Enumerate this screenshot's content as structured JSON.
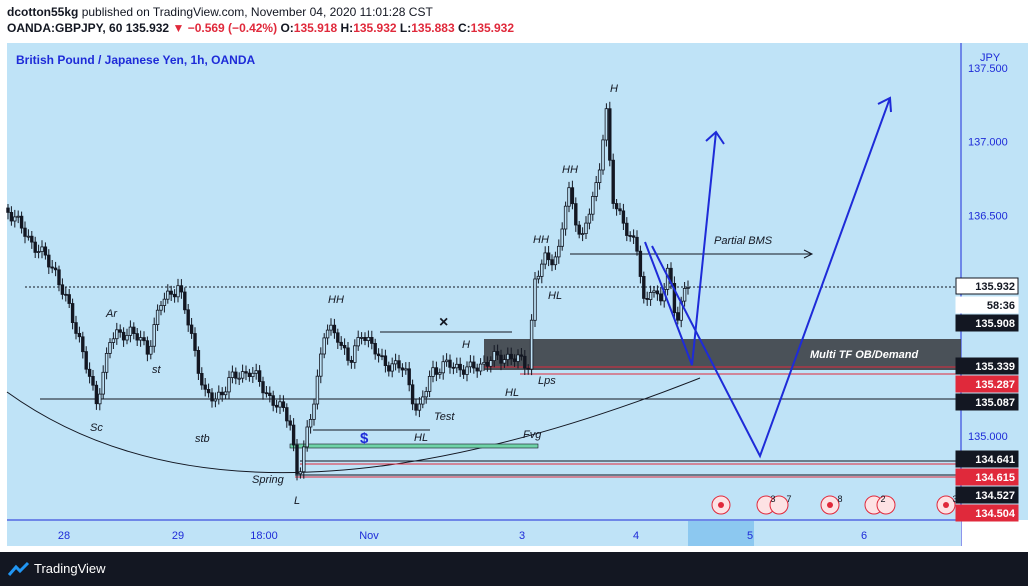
{
  "header": {
    "publisher": "dcotton55kg",
    "published_text": "published on TradingView.com, November 04, 2020 11:01:28 CST",
    "symbol": "OANDA:GBPJPY, 60",
    "last": "135.932",
    "change_arrow": "▼",
    "change": "−0.569 (−0.42%)",
    "o_label": "O:",
    "o_value": "135.918",
    "h_label": "H:",
    "h_value": "135.932",
    "l_label": "L:",
    "l_value": "135.883",
    "c_label": "C:",
    "c_value": "135.932"
  },
  "chart_data": {
    "type": "candlestick",
    "title": "British Pound / Japanese Yen, 1h, OANDA",
    "currency": "JPY",
    "ylim": [
      134.43,
      137.67
    ],
    "x_ticks": [
      "28",
      "29",
      "18:00",
      "Nov",
      "3",
      "4",
      "5",
      "6"
    ],
    "y_ticks": [
      "137.500",
      "137.000",
      "136.500",
      "136.000",
      "135.500",
      "135.000"
    ],
    "price_labels": [
      {
        "value": "135.932",
        "kind": "last"
      },
      {
        "value": "58:36",
        "kind": "countdown"
      },
      {
        "value": "135.908",
        "kind": "dark"
      },
      {
        "value": "135.339",
        "kind": "dark"
      },
      {
        "value": "135.287",
        "kind": "red"
      },
      {
        "value": "135.087",
        "kind": "dark"
      },
      {
        "value": "134.641",
        "kind": "dark"
      },
      {
        "value": "134.615",
        "kind": "red"
      },
      {
        "value": "134.527",
        "kind": "dark"
      },
      {
        "value": "134.504",
        "kind": "red"
      }
    ],
    "annotations": [
      "H",
      "HH",
      "HH",
      "HH",
      "HH",
      "HL",
      "HL",
      "HL",
      "Ar",
      "st",
      "Sc",
      "stb",
      "Spring",
      "L",
      "Test",
      "H",
      "Lps",
      "Fvg",
      "$",
      "×",
      "Partial BMS",
      "Multi TF OB/Demand"
    ],
    "events": [
      "",
      "3",
      "7",
      "8",
      "2",
      "3"
    ],
    "colors": {
      "background": "#bfe3f7",
      "up": "#131722",
      "down": "#131722",
      "projection": "#1e2bd8",
      "zone": "#3d4046",
      "level_red": "#e0293b"
    }
  },
  "footer": {
    "brand": "TradingView"
  }
}
